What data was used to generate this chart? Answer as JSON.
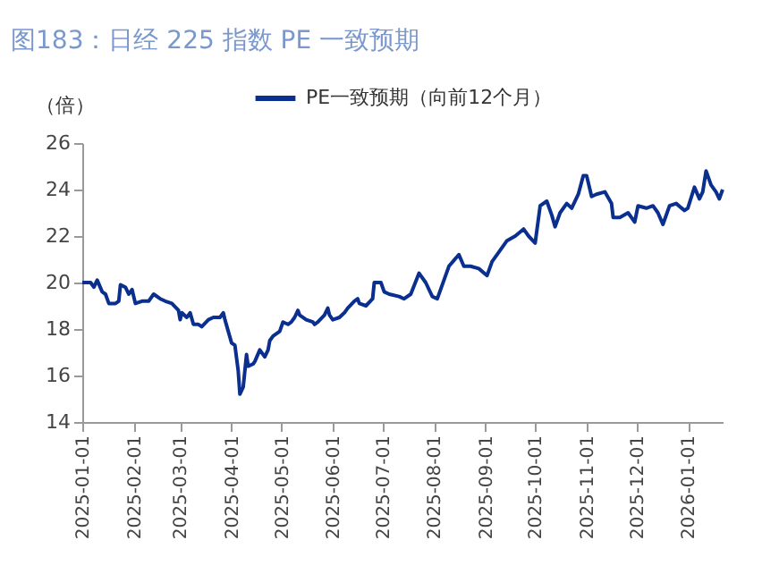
{
  "chart_data": {
    "type": "line",
    "title": "图183：日经 225 指数 PE 一致预期",
    "ylabel": "（倍）",
    "legend": "top",
    "grid": false,
    "line_style": "solid",
    "marker": "none",
    "xlim": [
      "2025-01-01",
      "2026-01-22"
    ],
    "xticks": [
      "2025-01-01",
      "2025-02-01",
      "2025-03-01",
      "2025-04-01",
      "2025-05-01",
      "2025-06-01",
      "2025-07-01",
      "2025-08-01",
      "2025-09-01",
      "2025-10-01",
      "2025-11-01",
      "2025-12-01",
      "2026-01-01"
    ],
    "ylim": [
      14,
      26
    ],
    "yticks": [
      14,
      16,
      18,
      20,
      22,
      24,
      26
    ],
    "x": [
      "2025-01-01",
      "2025-01-06",
      "2025-01-08",
      "2025-01-10",
      "2025-01-13",
      "2025-01-15",
      "2025-01-17",
      "2025-01-21",
      "2025-01-23",
      "2025-01-24",
      "2025-01-27",
      "2025-01-29",
      "2025-01-31",
      "2025-02-01",
      "2025-02-02",
      "2025-02-06",
      "2025-02-10",
      "2025-02-13",
      "2025-02-17",
      "2025-02-20",
      "2025-02-24",
      "2025-02-28",
      "2025-03-01",
      "2025-03-02",
      "2025-03-05",
      "2025-03-07",
      "2025-03-09",
      "2025-03-12",
      "2025-03-14",
      "2025-03-18",
      "2025-03-21",
      "2025-03-25",
      "2025-03-27",
      "2025-03-28",
      "2025-03-30",
      "2025-04-01",
      "2025-04-03",
      "2025-04-05",
      "2025-04-06",
      "2025-04-08",
      "2025-04-10",
      "2025-04-11",
      "2025-04-14",
      "2025-04-15",
      "2025-04-18",
      "2025-04-21",
      "2025-04-23",
      "2025-04-24",
      "2025-04-26",
      "2025-04-30",
      "2025-05-02",
      "2025-05-05",
      "2025-05-07",
      "2025-05-09",
      "2025-05-11",
      "2025-05-12",
      "2025-05-16",
      "2025-05-20",
      "2025-05-21",
      "2025-05-23",
      "2025-05-27",
      "2025-05-29",
      "2025-05-30",
      "2025-06-01",
      "2025-06-05",
      "2025-06-08",
      "2025-06-10",
      "2025-06-14",
      "2025-06-16",
      "2025-06-17",
      "2025-06-21",
      "2025-06-25",
      "2025-06-26",
      "2025-06-30",
      "2025-07-02",
      "2025-07-05",
      "2025-07-11",
      "2025-07-14",
      "2025-07-18",
      "2025-07-23",
      "2025-07-27",
      "2025-07-31",
      "2025-08-03",
      "2025-08-07",
      "2025-08-10",
      "2025-08-16",
      "2025-08-19",
      "2025-08-23",
      "2025-08-28",
      "2025-09-02",
      "2025-09-05",
      "2025-09-10",
      "2025-09-14",
      "2025-09-19",
      "2025-09-24",
      "2025-09-27",
      "2025-10-01",
      "2025-10-04",
      "2025-10-08",
      "2025-10-11",
      "2025-10-13",
      "2025-10-16",
      "2025-10-20",
      "2025-10-23",
      "2025-10-27",
      "2025-10-30",
      "2025-11-01",
      "2025-11-04",
      "2025-11-07",
      "2025-11-12",
      "2025-11-16",
      "2025-11-17",
      "2025-11-21",
      "2025-11-26",
      "2025-11-30",
      "2025-12-02",
      "2025-12-07",
      "2025-12-11",
      "2025-12-14",
      "2025-12-17",
      "2025-12-21",
      "2025-12-25",
      "2025-12-30",
      "2026-01-01",
      "2026-01-05",
      "2026-01-08",
      "2026-01-10",
      "2026-01-12",
      "2026-01-15",
      "2026-01-18",
      "2026-01-20",
      "2026-01-22"
    ],
    "series": [
      {
        "name": "PE一致预期（向前12个月）",
        "color": "#0a2f8f",
        "values": [
          20.0,
          20.0,
          19.8,
          20.1,
          19.6,
          19.5,
          19.1,
          19.1,
          19.2,
          19.9,
          19.8,
          19.5,
          19.7,
          19.4,
          19.1,
          19.2,
          19.2,
          19.5,
          19.3,
          19.2,
          19.1,
          18.8,
          18.4,
          18.7,
          18.5,
          18.7,
          18.2,
          18.2,
          18.1,
          18.4,
          18.5,
          18.5,
          18.7,
          18.4,
          17.9,
          17.4,
          17.3,
          16.2,
          15.2,
          15.5,
          16.9,
          16.4,
          16.5,
          16.6,
          17.1,
          16.8,
          17.1,
          17.5,
          17.7,
          17.9,
          18.3,
          18.2,
          18.3,
          18.5,
          18.8,
          18.6,
          18.4,
          18.3,
          18.2,
          18.3,
          18.6,
          18.9,
          18.6,
          18.4,
          18.5,
          18.7,
          18.9,
          19.2,
          19.3,
          19.1,
          19.0,
          19.3,
          20.0,
          20.0,
          19.6,
          19.5,
          19.4,
          19.3,
          19.5,
          20.4,
          20.0,
          19.4,
          19.3,
          20.1,
          20.7,
          21.2,
          20.7,
          20.7,
          20.6,
          20.3,
          20.9,
          21.4,
          21.8,
          22.0,
          22.3,
          22.0,
          21.7,
          23.3,
          23.5,
          22.9,
          22.4,
          23.0,
          23.4,
          23.2,
          23.8,
          24.6,
          24.6,
          23.7,
          23.8,
          23.9,
          23.4,
          22.8,
          22.8,
          23.0,
          22.6,
          23.3,
          23.2,
          23.3,
          23.0,
          22.5,
          23.3,
          23.4,
          23.1,
          23.2,
          24.1,
          23.6,
          23.9,
          24.8,
          24.2,
          23.9,
          23.6,
          24.0
        ]
      }
    ]
  }
}
